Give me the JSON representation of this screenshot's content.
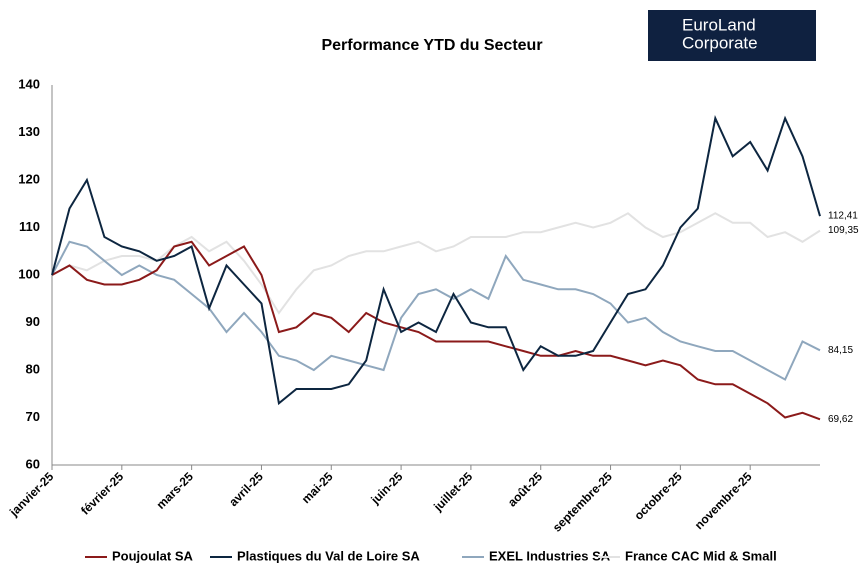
{
  "logo": [
    "EuroLand",
    "Corporate"
  ],
  "chart_data": {
    "type": "line",
    "title": "Performance YTD du Secteur",
    "categories": [
      "janvier-25",
      null,
      null,
      null,
      "février-25",
      null,
      null,
      null,
      "mars-25",
      null,
      null,
      null,
      "avril-25",
      null,
      null,
      null,
      "mai-25",
      null,
      null,
      null,
      "juin-25",
      null,
      null,
      null,
      "juillet-25",
      null,
      null,
      null,
      "août-25",
      null,
      null,
      null,
      "septembre-25",
      null,
      null,
      null,
      "octobre-25",
      null,
      null,
      null,
      "novembre-25",
      null,
      null,
      null,
      null
    ],
    "ylim": [
      60,
      140
    ],
    "yticks": [
      60,
      70,
      80,
      90,
      100,
      110,
      120,
      130,
      140
    ],
    "grid": false,
    "legend": "bottom",
    "series": [
      {
        "name": "France CAC Mid & Small",
        "color": "#e2e2e2",
        "values": [
          100,
          102,
          101,
          103,
          104,
          104,
          103,
          106,
          108,
          105,
          107,
          103,
          98,
          92,
          97,
          101,
          102,
          104,
          105,
          105,
          106,
          107,
          105,
          106,
          108,
          108,
          108,
          109,
          109,
          110,
          111,
          110,
          111,
          113,
          110,
          108,
          109,
          111,
          113,
          111,
          111,
          108,
          109,
          107,
          109.35
        ],
        "value_labels": [
          null,
          null,
          null,
          null,
          null,
          null,
          null,
          null,
          null,
          null,
          null,
          null,
          null,
          null,
          null,
          null,
          null,
          null,
          null,
          null,
          null,
          null,
          null,
          null,
          null,
          null,
          null,
          null,
          null,
          null,
          null,
          null,
          null,
          null,
          null,
          null,
          null,
          null,
          null,
          null,
          null,
          null,
          null,
          null,
          "109,35"
        ]
      },
      {
        "name": "EXEL Industries SA",
        "color": "#8fa7bd",
        "values": [
          100,
          107,
          106,
          103,
          100,
          102,
          100,
          99,
          96,
          93,
          88,
          92,
          88,
          83,
          82,
          80,
          83,
          82,
          81,
          80,
          91,
          96,
          97,
          95,
          97,
          95,
          104,
          99,
          98,
          97,
          97,
          96,
          94,
          90,
          91,
          88,
          86,
          85,
          84,
          84,
          82,
          80,
          78,
          86,
          84.15
        ],
        "value_labels": [
          null,
          null,
          null,
          null,
          null,
          null,
          null,
          null,
          null,
          null,
          null,
          null,
          null,
          null,
          null,
          null,
          null,
          null,
          null,
          null,
          null,
          null,
          null,
          null,
          null,
          null,
          null,
          null,
          null,
          null,
          null,
          null,
          null,
          null,
          null,
          null,
          null,
          null,
          null,
          null,
          null,
          null,
          null,
          null,
          "84,15"
        ]
      },
      {
        "name": "Poujoulat SA",
        "color": "#8b1a1a",
        "values": [
          100,
          102,
          99,
          98,
          98,
          99,
          101,
          106,
          107,
          102,
          104,
          106,
          100,
          88,
          89,
          92,
          91,
          88,
          92,
          90,
          89,
          88,
          86,
          86,
          86,
          86,
          85,
          84,
          83,
          83,
          84,
          83,
          83,
          82,
          81,
          82,
          81,
          78,
          77,
          77,
          75,
          73,
          70,
          71,
          69.62
        ],
        "value_labels": [
          null,
          null,
          null,
          null,
          null,
          null,
          null,
          null,
          null,
          null,
          null,
          null,
          null,
          null,
          null,
          null,
          null,
          null,
          null,
          null,
          null,
          null,
          null,
          null,
          null,
          null,
          null,
          null,
          null,
          null,
          null,
          null,
          null,
          null,
          null,
          null,
          null,
          null,
          null,
          null,
          null,
          null,
          null,
          null,
          "69,62"
        ]
      },
      {
        "name": "Plastiques du Val de Loire SA",
        "color": "#0d2640",
        "values": [
          100,
          114,
          120,
          108,
          106,
          105,
          103,
          104,
          106,
          93,
          102,
          98,
          94,
          73,
          76,
          76,
          76,
          77,
          82,
          97,
          88,
          90,
          88,
          96,
          90,
          89,
          89,
          80,
          85,
          83,
          83,
          84,
          90,
          96,
          97,
          102,
          110,
          114,
          133,
          125,
          128,
          122,
          133,
          125,
          112.41
        ],
        "value_labels": [
          null,
          null,
          null,
          null,
          null,
          null,
          null,
          null,
          null,
          null,
          null,
          null,
          null,
          null,
          null,
          null,
          null,
          null,
          null,
          null,
          null,
          null,
          null,
          null,
          null,
          null,
          null,
          null,
          null,
          null,
          null,
          null,
          null,
          null,
          null,
          null,
          null,
          null,
          null,
          null,
          null,
          null,
          null,
          null,
          "112,41"
        ]
      }
    ]
  }
}
